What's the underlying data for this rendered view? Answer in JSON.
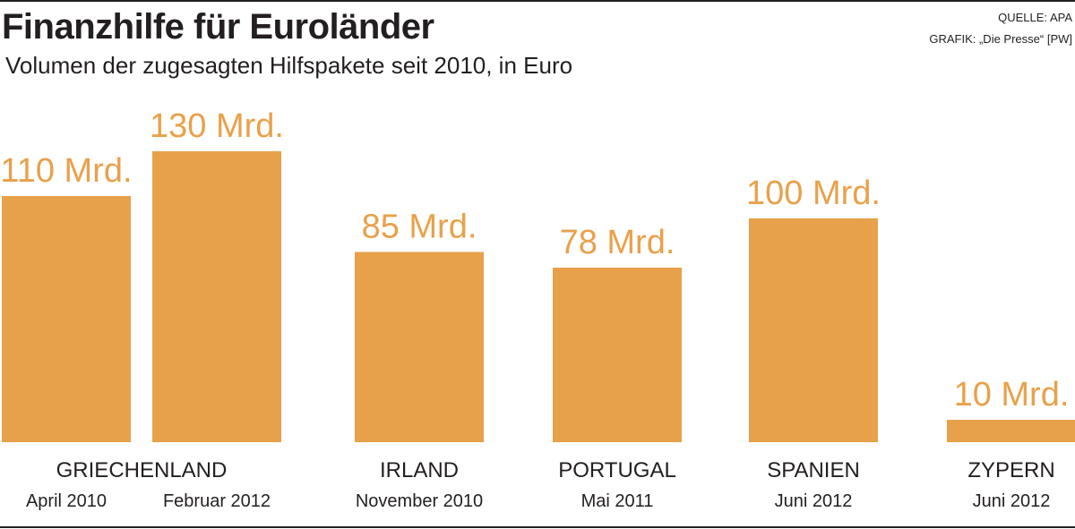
{
  "header": {
    "title": "Finanzhilfe für Euroländer",
    "subtitle": "Volumen der zugesagten Hilfspakete seit 2010, in Euro",
    "source": "QUELLE: APA",
    "graphic": "GRAFIK: „Die Presse“ [PW]"
  },
  "chart_data": {
    "type": "bar",
    "title": "Finanzhilfe für Euroländer",
    "subtitle": "Volumen der zugesagten Hilfspakete seit 2010, in Euro",
    "unit": "Mrd. Euro",
    "grid": false,
    "legend": "none",
    "bar_color": "#e8a14b",
    "categories": [
      "April 2010",
      "Februar 2012",
      "November 2010",
      "Mai 2011",
      "Juni 2012",
      "Juni 2012"
    ],
    "values": [
      110,
      130,
      85,
      78,
      100,
      10
    ],
    "value_labels": [
      "110 Mrd.",
      "130 Mrd.",
      "85 Mrd.",
      "78 Mrd.",
      "100 Mrd.",
      "10 Mrd."
    ],
    "groups": [
      {
        "country": "GRIECHENLAND",
        "dates": [
          "April 2010",
          "Februar 2012"
        ],
        "values": [
          110,
          130
        ]
      },
      {
        "country": "IRLAND",
        "dates": [
          "November 2010"
        ],
        "values": [
          85
        ]
      },
      {
        "country": "PORTUGAL",
        "dates": [
          "Mai 2011"
        ],
        "values": [
          78
        ]
      },
      {
        "country": "SPANIEN",
        "dates": [
          "Juni 2012"
        ],
        "values": [
          100
        ]
      },
      {
        "country": "ZYPERN",
        "dates": [
          "Juni 2012"
        ],
        "values": [
          10
        ]
      }
    ]
  }
}
